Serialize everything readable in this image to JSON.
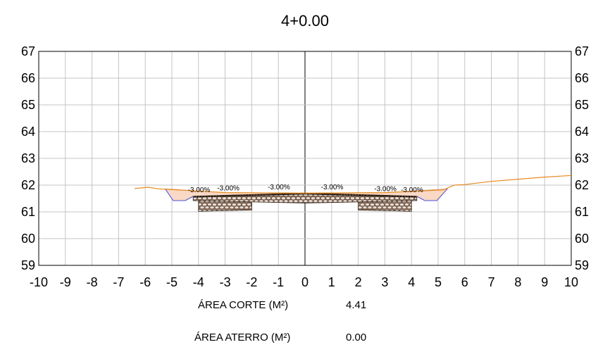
{
  "title": "4+0.00",
  "colors": {
    "grid": "#c4c4c4",
    "terrain": "#e98a1e",
    "cut_fill": "#f9d9c5",
    "cut_edge": "#d69a80",
    "ditch": "#4a52d8",
    "pavement": "#b8937d",
    "base_dark": "#2a1a10",
    "subgrade": "#c9a995",
    "axis": "#000000"
  },
  "chart_data": {
    "type": "line",
    "title": "4+0.00",
    "xlabel": "",
    "ylabel": "",
    "xlim": [
      -10,
      10
    ],
    "ylim": [
      59,
      67
    ],
    "grid": true,
    "xticks": [
      "-10",
      "-9",
      "-8",
      "-7",
      "-6",
      "-5",
      "-4",
      "-3",
      "-2",
      "-1",
      "0",
      "1",
      "2",
      "3",
      "4",
      "5",
      "6",
      "7",
      "8",
      "9",
      "10"
    ],
    "yticks": [
      "59",
      "60",
      "61",
      "62",
      "63",
      "64",
      "65",
      "66",
      "67"
    ],
    "terrain": [
      {
        "x": -6.4,
        "y": 61.87
      },
      {
        "x": -5.9,
        "y": 61.92
      },
      {
        "x": -5.5,
        "y": 61.86
      },
      {
        "x": -3.0,
        "y": 61.72
      },
      {
        "x": 0.0,
        "y": 61.7
      },
      {
        "x": 3.0,
        "y": 61.72
      },
      {
        "x": 5.2,
        "y": 61.82
      },
      {
        "x": 5.6,
        "y": 62.0
      },
      {
        "x": 6.0,
        "y": 62.02
      },
      {
        "x": 7.0,
        "y": 62.14
      },
      {
        "x": 8.0,
        "y": 62.22
      },
      {
        "x": 9.0,
        "y": 62.3
      },
      {
        "x": 10.0,
        "y": 62.36
      }
    ],
    "road_surface": [
      {
        "x": -4.2,
        "y": 61.58
      },
      {
        "x": -2.0,
        "y": 61.64
      },
      {
        "x": 0.0,
        "y": 61.7
      },
      {
        "x": 2.0,
        "y": 61.64
      },
      {
        "x": 4.2,
        "y": 61.58
      }
    ],
    "left_ditch": [
      {
        "x": -5.25,
        "y": 61.86
      },
      {
        "x": -4.95,
        "y": 61.42
      },
      {
        "x": -4.5,
        "y": 61.42
      },
      {
        "x": -4.2,
        "y": 61.58
      }
    ],
    "right_ditch": [
      {
        "x": 4.2,
        "y": 61.58
      },
      {
        "x": 4.5,
        "y": 61.42
      },
      {
        "x": 4.95,
        "y": 61.42
      },
      {
        "x": 5.35,
        "y": 61.86
      }
    ],
    "slope_labels": [
      {
        "text": "-3.00%",
        "x": -4.4,
        "y": 61.74
      },
      {
        "text": "-3.00%",
        "x": -3.3,
        "y": 61.8
      },
      {
        "text": "-3.00%",
        "x": -1.4,
        "y": 61.84
      },
      {
        "text": "-3.00%",
        "x": 0.6,
        "y": 61.84
      },
      {
        "text": "-3.00%",
        "x": 2.6,
        "y": 61.78
      },
      {
        "text": "-3.00%",
        "x": 3.6,
        "y": 61.74
      }
    ]
  },
  "areas": {
    "corte_label": "ÁREA CORTE (M²)",
    "corte_value": "4.41",
    "aterro_label": "ÁREA ATERRO (M²)",
    "aterro_value": "0.00"
  }
}
